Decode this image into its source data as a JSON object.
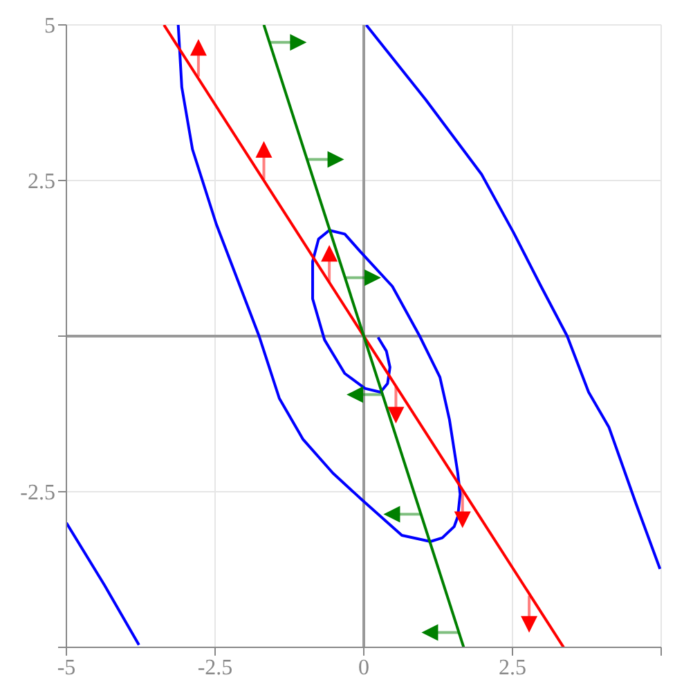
{
  "chart_data": {
    "type": "line",
    "xlim": [
      -5,
      5
    ],
    "ylim": [
      -5,
      5
    ],
    "xticks": [
      -5,
      -2.5,
      0,
      2.5,
      {
        "value": 5,
        "label": null
      }
    ],
    "yticks": [
      {
        "value": -5,
        "label": null
      },
      -2.5,
      {
        "value": 0,
        "label": null
      },
      2.5,
      5
    ],
    "grid": true,
    "marker": "none",
    "line_style": "solid",
    "series": [
      {
        "color": "#0000ff",
        "x": [
          0.24,
          0.38,
          0.44,
          0.4,
          0.28,
          0.02,
          -0.32,
          -0.66,
          -0.86,
          -0.86,
          -0.76,
          -0.58,
          -0.32,
          -0.06,
          0.48,
          0.94,
          1.28,
          1.44,
          1.58,
          1.62,
          1.58,
          1.52,
          1.32,
          1.12,
          0.64,
          -0.02,
          -0.52,
          -1.02,
          -1.42,
          -1.76,
          -2.12,
          -2.48,
          -2.88,
          -3.06,
          -3.12
        ],
        "values": [
          -0.02,
          -0.24,
          -0.5,
          -0.76,
          -0.9,
          -0.84,
          -0.6,
          -0.06,
          0.6,
          1.2,
          1.56,
          1.7,
          1.64,
          1.36,
          0.8,
          0,
          -0.66,
          -1.34,
          -2.2,
          -2.54,
          -2.9,
          -3.06,
          -3.24,
          -3.3,
          -3.2,
          -2.64,
          -2.2,
          -1.66,
          -1,
          0,
          0.9,
          1.8,
          3,
          4,
          5
        ]
      },
      {
        "color": "#0000ff",
        "x": [
          0.04,
          1.04,
          1.98,
          2.52,
          2.98,
          3.42,
          3.78,
          4.12,
          4.58,
          4.98
        ],
        "values": [
          5,
          3.8,
          2.6,
          1.66,
          0.8,
          0,
          -0.9,
          -1.46,
          -2.7,
          -3.74
        ]
      },
      {
        "color": "#0000ff",
        "x": [
          -5,
          -4.36,
          -3.78
        ],
        "values": [
          -3,
          -4,
          -4.96
        ]
      },
      {
        "color": "#ff0000",
        "x": [
          -3.36,
          3.36
        ],
        "values": [
          5,
          -5
        ]
      },
      {
        "color": "#008000",
        "x": [
          -1.68,
          1.68
        ],
        "values": [
          5,
          -5
        ]
      },
      {
        "color": "#ff0000",
        "marker": "triangle",
        "x": [
          -2.78,
          -2.78
        ],
        "values": [
          4.17,
          4.64
        ]
      },
      {
        "color": "#ff0000",
        "marker": "triangle",
        "x": [
          -1.68,
          -1.68
        ],
        "values": [
          2.52,
          3.0
        ]
      },
      {
        "color": "#ff0000",
        "marker": "triangle",
        "x": [
          -0.58,
          -0.58
        ],
        "values": [
          0.87,
          1.33
        ]
      },
      {
        "color": "#ff0000",
        "marker": "triangle",
        "x": [
          0.54,
          0.54
        ],
        "values": [
          -0.81,
          -1.27
        ]
      },
      {
        "color": "#ff0000",
        "marker": "triangle",
        "x": [
          1.66,
          1.66
        ],
        "values": [
          -2.49,
          -2.95
        ]
      },
      {
        "color": "#ff0000",
        "marker": "triangle",
        "x": [
          2.78,
          2.78
        ],
        "values": [
          -4.17,
          -4.63
        ]
      },
      {
        "color": "#008000",
        "marker": "triangle",
        "x": [
          -1.57,
          -1.1
        ],
        "values": [
          4.72,
          4.72
        ]
      },
      {
        "color": "#008000",
        "marker": "triangle",
        "x": [
          -0.95,
          -0.47
        ],
        "values": [
          2.84,
          2.84
        ]
      },
      {
        "color": "#008000",
        "marker": "triangle",
        "x": [
          -0.31,
          0.15
        ],
        "values": [
          0.94,
          0.94
        ]
      },
      {
        "color": "#008000",
        "marker": "triangle",
        "x": [
          0.31,
          -0.15
        ],
        "values": [
          -0.94,
          -0.94
        ]
      },
      {
        "color": "#008000",
        "marker": "triangle",
        "x": [
          0.95,
          0.47
        ],
        "values": [
          -2.86,
          -2.86
        ]
      },
      {
        "color": "#008000",
        "marker": "triangle",
        "x": [
          1.59,
          1.11
        ],
        "values": [
          -4.76,
          -4.76
        ]
      }
    ]
  }
}
